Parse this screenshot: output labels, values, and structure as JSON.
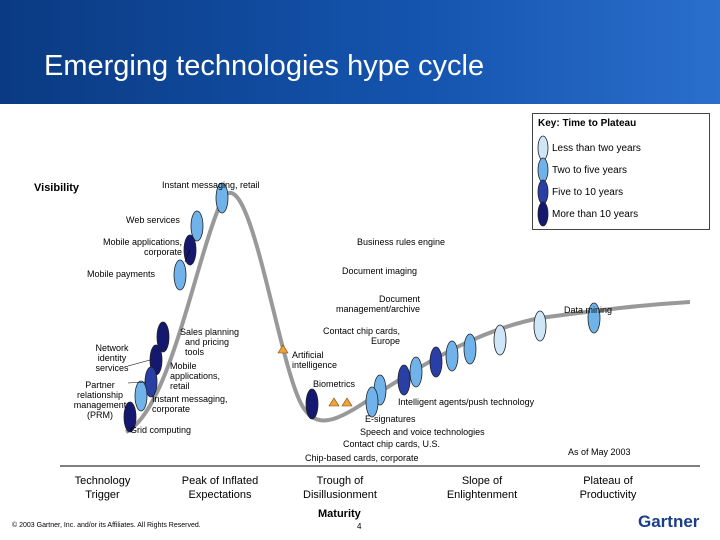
{
  "slide": {
    "title": "Emerging technologies hype cycle",
    "y_axis": "Visibility",
    "x_axis": "Maturity",
    "date_note": "As of May 2003",
    "copyright": "© 2003 Gartner, Inc. and/or its Affiliates. All Rights Reserved.",
    "page_number": "4",
    "logo": "Gartner"
  },
  "key": {
    "title": "Key: Time to Plateau",
    "items": [
      {
        "label": "Less than two years",
        "color": "#cfe6f7"
      },
      {
        "label": "Two to five years",
        "color": "#6fb3ea"
      },
      {
        "label": "Five to 10 years",
        "color": "#2a3fa6"
      },
      {
        "label": "More than 10 years",
        "color": "#14186e"
      }
    ]
  },
  "phases": [
    {
      "line1": "Technology",
      "line2": "Trigger"
    },
    {
      "line1": "Peak of Inflated",
      "line2": "Expectations"
    },
    {
      "line1": "Trough of",
      "line2": "Disillusionment"
    },
    {
      "line1": "Slope of",
      "line2": "Enlightenment"
    },
    {
      "line1": "Plateau of",
      "line2": "Productivity"
    }
  ],
  "technologies": {
    "instant_messaging_retail": "Instant messaging, retail",
    "web_services": "Web services",
    "mobile_apps_corporate_1": "Mobile applications,",
    "mobile_apps_corporate_2": "corporate",
    "mobile_payments": "Mobile payments",
    "network_identity_1": "Network",
    "network_identity_2": "identity",
    "network_identity_3": "services",
    "prm_1": "Partner",
    "prm_2": "relationship",
    "prm_3": "management",
    "prm_4": "(PRM)",
    "sales_planning_1": "Sales planning",
    "sales_planning_2": "and pricing",
    "sales_planning_3": "tools",
    "mobile_apps_retail_1": "Mobile",
    "mobile_apps_retail_2": "applications,",
    "mobile_apps_retail_3": "retail",
    "im_corporate_1": "Instant messaging,",
    "im_corporate_2": "corporate",
    "grid_computing": "Grid computing",
    "business_rules": "Business rules engine",
    "document_imaging": "Document imaging",
    "doc_mgmt_1": "Document",
    "doc_mgmt_2": "management/archive",
    "data_mining": "Data mining",
    "chip_cards_europe_1": "Contact chip cards,",
    "chip_cards_europe_2": "Europe",
    "ai_1": "Artificial",
    "ai_2": "intelligence",
    "biometrics": "Biometrics",
    "intelligent_agents": "Intelligent agents/push technology",
    "e_signatures": "E-signatures",
    "speech_voice": "Speech and voice technologies",
    "chip_cards_us": "Contact chip cards, U.S.",
    "chip_cards_corporate": "Chip-based cards, corporate"
  }
}
